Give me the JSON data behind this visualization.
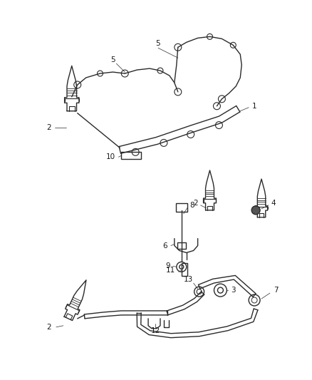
{
  "bg_color": "#ffffff",
  "line_color": "#2a2a2a",
  "label_color": "#1a1a1a",
  "fig_width": 4.38,
  "fig_height": 5.33,
  "dpi": 100,
  "label_fontsize": 7.5
}
